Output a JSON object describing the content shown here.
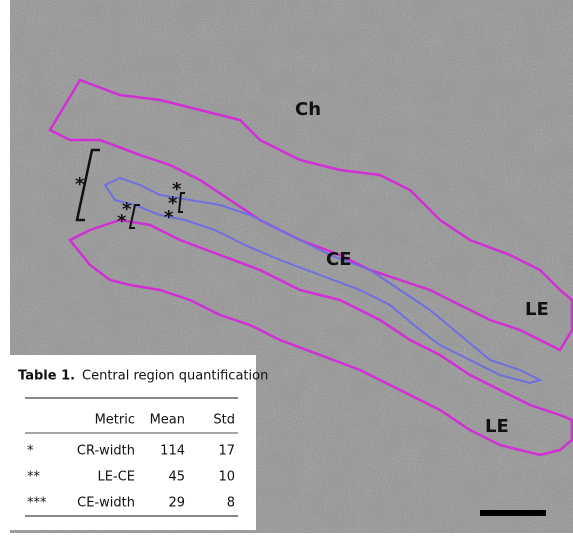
{
  "image": {
    "region_labels": [
      "Ch",
      "CE",
      "LE",
      "LE"
    ],
    "markers": [
      "*",
      "*",
      "*",
      "*",
      "*",
      "*"
    ]
  },
  "table": {
    "caption_label": "Table 1.",
    "caption": "Central region quantification",
    "header": [
      "Metric",
      "Mean",
      "Std"
    ],
    "rows": [
      [
        "*",
        "CR-width",
        114,
        17
      ],
      [
        "**",
        "LE-CE",
        45,
        10
      ],
      [
        "***",
        "CE-width",
        29,
        8
      ]
    ]
  }
}
